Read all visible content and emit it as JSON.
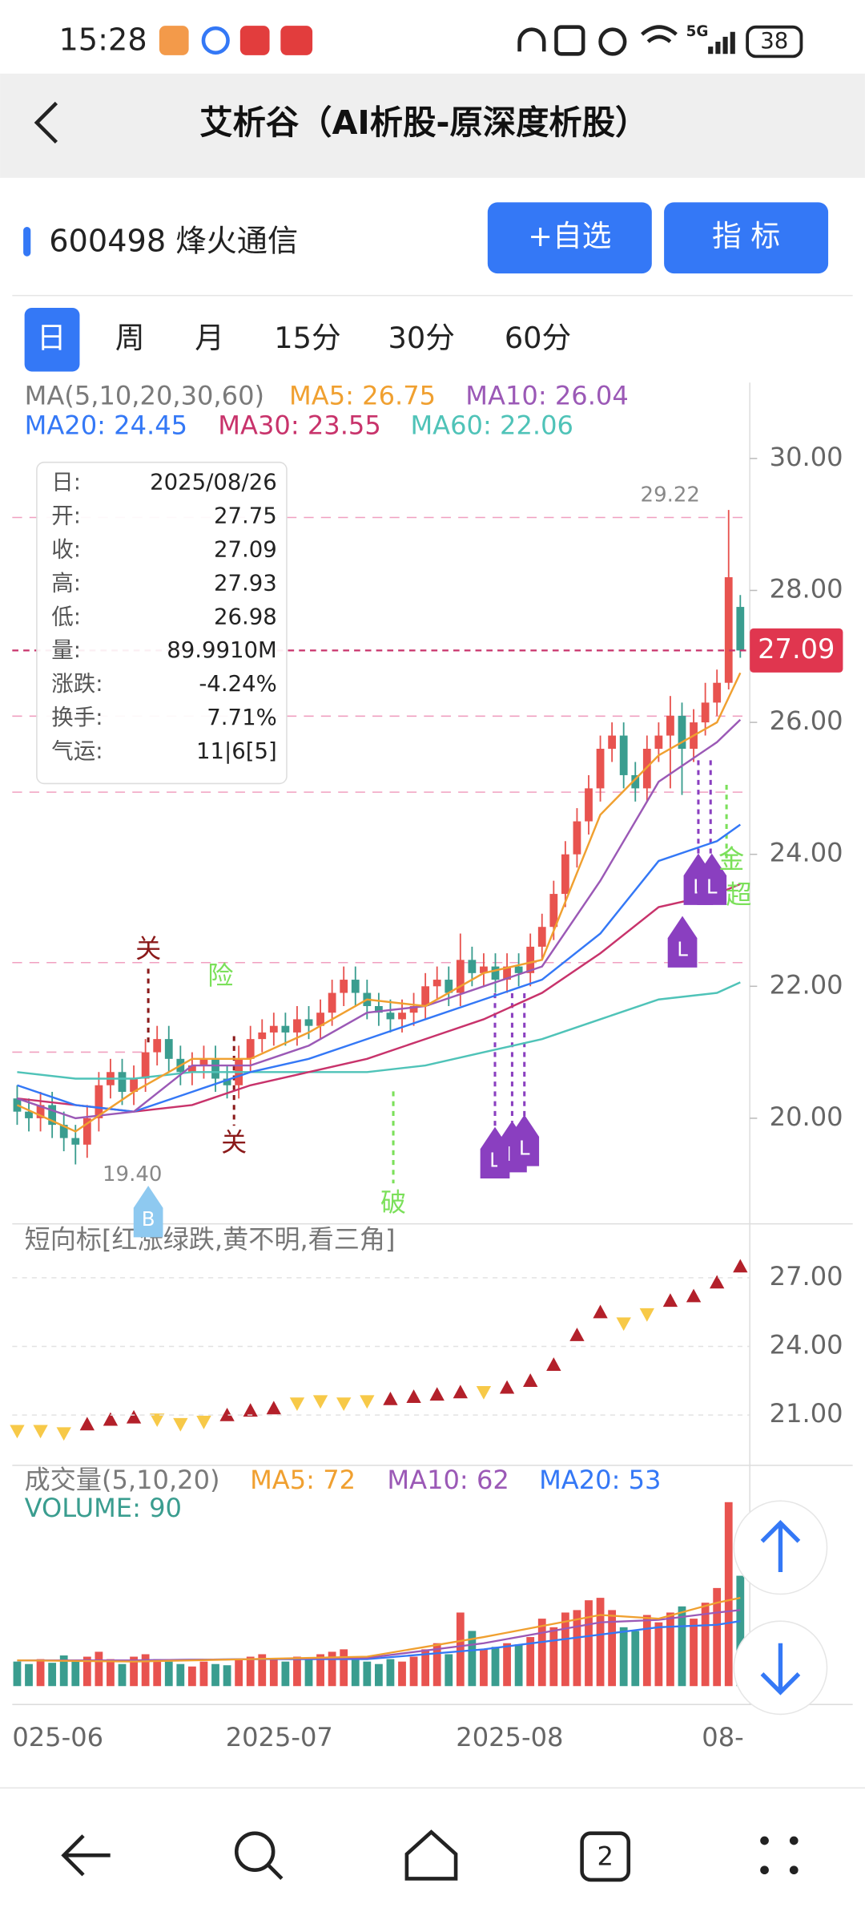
{
  "status_bar": {
    "time": "15:28",
    "network": "5G",
    "battery": "38"
  },
  "header": {
    "title": "艾析谷（AI析股-原深度析股）"
  },
  "stock": {
    "code_name": "600498 烽火通信",
    "buttons": [
      "+自选",
      "指 标"
    ]
  },
  "tabs": [
    "日",
    "周",
    "月",
    "15分",
    "30分",
    "60分"
  ],
  "main_chart": {
    "type": "candlestick",
    "legend": [
      {
        "text": "MA(5,10,20,30,60)",
        "color": "#7a7a7a"
      },
      {
        "text": "MA5: 26.75",
        "color": "#f0a030"
      },
      {
        "text": "MA10: 26.04",
        "color": "#9b59b6"
      },
      {
        "text": "MA20: 24.45",
        "color": "#3478f6"
      },
      {
        "text": "MA30: 23.55",
        "color": "#c8336b"
      },
      {
        "text": "MA60: 22.06",
        "color": "#4fc3b8"
      }
    ],
    "info_box": [
      [
        "日:",
        "2025/08/26"
      ],
      [
        "开:",
        "27.75"
      ],
      [
        "收:",
        "27.09"
      ],
      [
        "高:",
        "27.93"
      ],
      [
        "低:",
        "26.98"
      ],
      [
        "量:",
        "89.9910M"
      ],
      [
        "涨跌:",
        "-4.24%"
      ],
      [
        "换手:",
        "7.71%"
      ],
      [
        "气运:",
        "11|6[5]"
      ]
    ],
    "ylim": [
      18.4,
      31.15
    ],
    "yticks": [
      {
        "value": 20,
        "label": "20.00"
      },
      {
        "value": 22,
        "label": "22.00"
      },
      {
        "value": 24,
        "label": "24.00"
      },
      {
        "value": 26,
        "label": "26.00"
      },
      {
        "value": 28,
        "label": "28.00"
      },
      {
        "value": 30,
        "label": "30.00"
      }
    ],
    "last_price": {
      "value": 27.09,
      "label": "27.09"
    },
    "up_color": "#e8534f",
    "down_color": "#3a9d8f",
    "candles": [
      [
        20.3,
        20.5,
        19.9,
        20.1
      ],
      [
        20.1,
        20.3,
        19.8,
        20.0
      ],
      [
        20.0,
        20.4,
        19.8,
        20.2
      ],
      [
        20.2,
        20.4,
        19.7,
        19.9
      ],
      [
        19.9,
        20.1,
        19.5,
        19.7
      ],
      [
        19.7,
        19.9,
        19.3,
        19.6
      ],
      [
        19.6,
        20.2,
        19.4,
        20.0
      ],
      [
        20.0,
        20.7,
        19.8,
        20.5
      ],
      [
        20.5,
        20.9,
        20.3,
        20.7
      ],
      [
        20.7,
        20.9,
        20.2,
        20.4
      ],
      [
        20.4,
        20.8,
        20.2,
        20.6
      ],
      [
        20.6,
        21.2,
        20.4,
        21.0
      ],
      [
        21.0,
        21.4,
        20.8,
        21.2
      ],
      [
        21.2,
        21.4,
        20.7,
        20.9
      ],
      [
        20.9,
        21.1,
        20.5,
        20.7
      ],
      [
        20.7,
        21.0,
        20.5,
        20.8
      ],
      [
        20.8,
        21.1,
        20.6,
        20.9
      ],
      [
        20.9,
        21.1,
        20.4,
        20.6
      ],
      [
        20.6,
        20.8,
        20.3,
        20.5
      ],
      [
        20.5,
        21.1,
        20.3,
        20.9
      ],
      [
        20.9,
        21.4,
        20.7,
        21.2
      ],
      [
        21.2,
        21.5,
        21.0,
        21.3
      ],
      [
        21.3,
        21.6,
        21.1,
        21.4
      ],
      [
        21.4,
        21.6,
        21.1,
        21.3
      ],
      [
        21.3,
        21.7,
        21.1,
        21.5
      ],
      [
        21.5,
        21.7,
        21.2,
        21.4
      ],
      [
        21.4,
        21.8,
        21.2,
        21.6
      ],
      [
        21.6,
        22.1,
        21.4,
        21.9
      ],
      [
        21.9,
        22.3,
        21.7,
        22.1
      ],
      [
        22.1,
        22.3,
        21.7,
        21.9
      ],
      [
        21.9,
        22.1,
        21.5,
        21.7
      ],
      [
        21.7,
        21.9,
        21.4,
        21.6
      ],
      [
        21.6,
        21.8,
        21.3,
        21.5
      ],
      [
        21.5,
        21.8,
        21.3,
        21.6
      ],
      [
        21.6,
        21.9,
        21.4,
        21.7
      ],
      [
        21.7,
        22.2,
        21.5,
        22.0
      ],
      [
        22.0,
        22.3,
        21.8,
        22.1
      ],
      [
        22.1,
        22.3,
        21.7,
        21.9
      ],
      [
        21.9,
        22.8,
        21.7,
        22.4
      ],
      [
        22.4,
        22.6,
        22.0,
        22.2
      ],
      [
        22.2,
        22.5,
        22.0,
        22.3
      ],
      [
        22.3,
        22.5,
        21.9,
        22.1
      ],
      [
        22.1,
        22.5,
        21.9,
        22.3
      ],
      [
        22.3,
        22.5,
        22.0,
        22.2
      ],
      [
        22.2,
        22.8,
        22.0,
        22.6
      ],
      [
        22.6,
        23.1,
        22.4,
        22.9
      ],
      [
        22.9,
        23.6,
        22.7,
        23.4
      ],
      [
        23.4,
        24.2,
        23.2,
        24.0
      ],
      [
        24.0,
        24.7,
        23.8,
        24.5
      ],
      [
        24.5,
        25.2,
        24.3,
        25.0
      ],
      [
        25.0,
        25.8,
        24.8,
        25.6
      ],
      [
        25.6,
        26.0,
        25.4,
        25.8
      ],
      [
        25.8,
        26.0,
        25.0,
        25.2
      ],
      [
        25.2,
        25.4,
        24.8,
        25.0
      ],
      [
        25.0,
        25.8,
        24.8,
        25.6
      ],
      [
        25.6,
        26.0,
        25.4,
        25.8
      ],
      [
        25.8,
        26.4,
        25.0,
        26.1
      ],
      [
        26.1,
        26.3,
        24.9,
        25.6
      ],
      [
        25.6,
        26.2,
        25.4,
        26.0
      ],
      [
        26.0,
        26.6,
        25.8,
        26.3
      ],
      [
        26.3,
        26.8,
        26.1,
        26.6
      ],
      [
        26.6,
        29.22,
        26.5,
        28.2
      ],
      [
        27.75,
        27.93,
        26.98,
        27.09
      ]
    ],
    "ma_index": [
      0,
      5,
      10,
      15,
      20,
      25,
      30,
      35,
      40,
      45,
      50,
      55,
      60,
      62
    ],
    "ma_lines": [
      {
        "name": "MA60",
        "color": "#4fc3b8",
        "values": [
          20.7,
          20.6,
          20.6,
          20.7,
          20.7,
          20.7,
          20.7,
          20.8,
          21.0,
          21.2,
          21.5,
          21.8,
          21.9,
          22.06
        ]
      },
      {
        "name": "MA30",
        "color": "#c8336b",
        "values": [
          20.3,
          20.2,
          20.1,
          20.2,
          20.5,
          20.7,
          20.9,
          21.2,
          21.5,
          21.9,
          22.5,
          23.2,
          23.4,
          23.55
        ]
      },
      {
        "name": "MA20",
        "color": "#3478f6",
        "values": [
          20.5,
          20.2,
          20.1,
          20.4,
          20.7,
          20.9,
          21.2,
          21.5,
          21.8,
          22.1,
          22.8,
          23.9,
          24.2,
          24.45
        ]
      },
      {
        "name": "MA10",
        "color": "#9b59b6",
        "values": [
          20.3,
          20.0,
          20.1,
          20.8,
          20.8,
          21.1,
          21.6,
          21.7,
          22.0,
          22.3,
          23.6,
          25.1,
          25.7,
          26.04
        ]
      },
      {
        "name": "MA5",
        "color": "#f0a030",
        "values": [
          20.2,
          19.8,
          20.4,
          20.9,
          20.9,
          21.3,
          21.8,
          21.7,
          22.2,
          22.4,
          24.6,
          25.5,
          26.0,
          26.75
        ]
      }
    ],
    "annotations": [
      "关",
      "险",
      "关",
      "破",
      "29.22",
      "19.40",
      "L",
      "L",
      "L",
      "L",
      "L",
      "L",
      "B",
      "金",
      "超"
    ],
    "x_labels": [
      "025-06",
      "2025-07",
      "2025-08",
      "08-"
    ]
  },
  "short_chart": {
    "type": "scatter",
    "title": "短向标[红涨绿跌,黄不明,看三角]",
    "ylim": [
      18.8,
      29.36
    ],
    "yticks": [
      {
        "value": 21,
        "label": "21.00"
      },
      {
        "value": 24,
        "label": "24.00"
      },
      {
        "value": 27,
        "label": "27.00"
      }
    ],
    "index": [
      0,
      2,
      4,
      6,
      8,
      10,
      12,
      14,
      16,
      18,
      20,
      22,
      24,
      26,
      28,
      30,
      32,
      34,
      36,
      38,
      40,
      42,
      44,
      46,
      48,
      50,
      52,
      54,
      56,
      58,
      60,
      62
    ],
    "values": [
      20.3,
      20.3,
      20.2,
      20.6,
      20.8,
      20.9,
      20.8,
      20.6,
      20.7,
      21.0,
      21.2,
      21.3,
      21.5,
      21.6,
      21.5,
      21.6,
      21.7,
      21.8,
      21.9,
      22.0,
      22.0,
      22.2,
      22.5,
      23.2,
      24.5,
      25.5,
      25.0,
      25.4,
      26.0,
      26.2,
      26.8,
      27.5
    ],
    "signal": [
      "down",
      "down",
      "down",
      "up",
      "up",
      "up",
      "down",
      "down",
      "down",
      "up",
      "up",
      "up",
      "down",
      "down",
      "down",
      "down",
      "up",
      "up",
      "up",
      "up",
      "down",
      "up",
      "up",
      "up",
      "up",
      "up",
      "down",
      "down",
      "up",
      "up",
      "up",
      "up"
    ],
    "up_color": "#b3202a",
    "down_color": "#f7c948"
  },
  "volume_chart": {
    "type": "bar",
    "legend": [
      {
        "text": "成交量(5,10,20)",
        "color": "#7a7a7a"
      },
      {
        "text": "MA5: 72",
        "color": "#f0a030"
      },
      {
        "text": "MA10: 62",
        "color": "#9b59b6"
      },
      {
        "text": "MA20: 53",
        "color": "#3478f6"
      },
      {
        "text": "VOLUME: 90",
        "color": "#3a9d8f"
      }
    ],
    "ylim": [
      0,
      170
    ],
    "values": [
      20,
      18,
      22,
      19,
      25,
      20,
      24,
      28,
      22,
      18,
      24,
      26,
      22,
      20,
      18,
      16,
      20,
      18,
      17,
      22,
      24,
      26,
      22,
      20,
      24,
      22,
      26,
      28,
      30,
      22,
      20,
      18,
      22,
      20,
      24,
      30,
      35,
      26,
      60,
      45,
      30,
      32,
      35,
      34,
      40,
      55,
      48,
      60,
      62,
      70,
      72,
      62,
      48,
      45,
      58,
      52,
      60,
      65,
      55,
      68,
      80,
      150,
      90
    ],
    "ma_index": [
      0,
      10,
      20,
      30,
      40,
      50,
      55,
      60,
      62
    ],
    "ma_lines": [
      {
        "name": "MA20",
        "color": "#3478f6",
        "values": [
          21,
          21,
          22,
          22,
          30,
          42,
          48,
          50,
          53
        ]
      },
      {
        "name": "MA10",
        "color": "#9b59b6",
        "values": [
          21,
          21,
          22,
          23,
          35,
          52,
          54,
          60,
          62
        ]
      },
      {
        "name": "MA5",
        "color": "#f0a030",
        "values": [
          21,
          20,
          22,
          24,
          40,
          58,
          55,
          68,
          72
        ]
      }
    ]
  },
  "nav": {
    "tab_count": "2"
  }
}
